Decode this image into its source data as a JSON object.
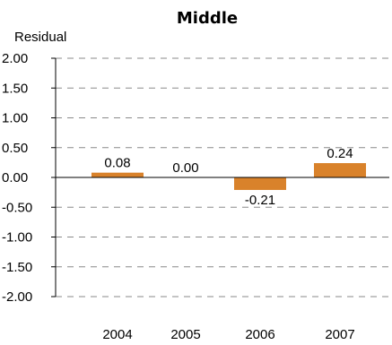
{
  "chart_data": {
    "type": "bar",
    "title": "Middle",
    "xlabel": "",
    "ylabel": "Residual",
    "categories": [
      "2004",
      "2005",
      "2006",
      "2007"
    ],
    "values": [
      0.08,
      0.0,
      -0.21,
      0.24
    ],
    "data_labels": [
      "0.08",
      "0.00",
      "-0.21",
      "0.24"
    ],
    "ylim": [
      -2.0,
      2.0
    ],
    "yticks": [
      2.0,
      1.5,
      1.0,
      0.5,
      0.0,
      -0.5,
      -1.0,
      -1.5,
      -2.0
    ],
    "ytick_labels": [
      "2.00",
      "1.50",
      "1.00",
      "0.50",
      "0.00",
      "-0.50",
      "-1.00",
      "-1.50",
      "-2.00"
    ],
    "grid": true,
    "grid_style": "dashed",
    "legend": "none",
    "bar_color": "#D9822B"
  }
}
